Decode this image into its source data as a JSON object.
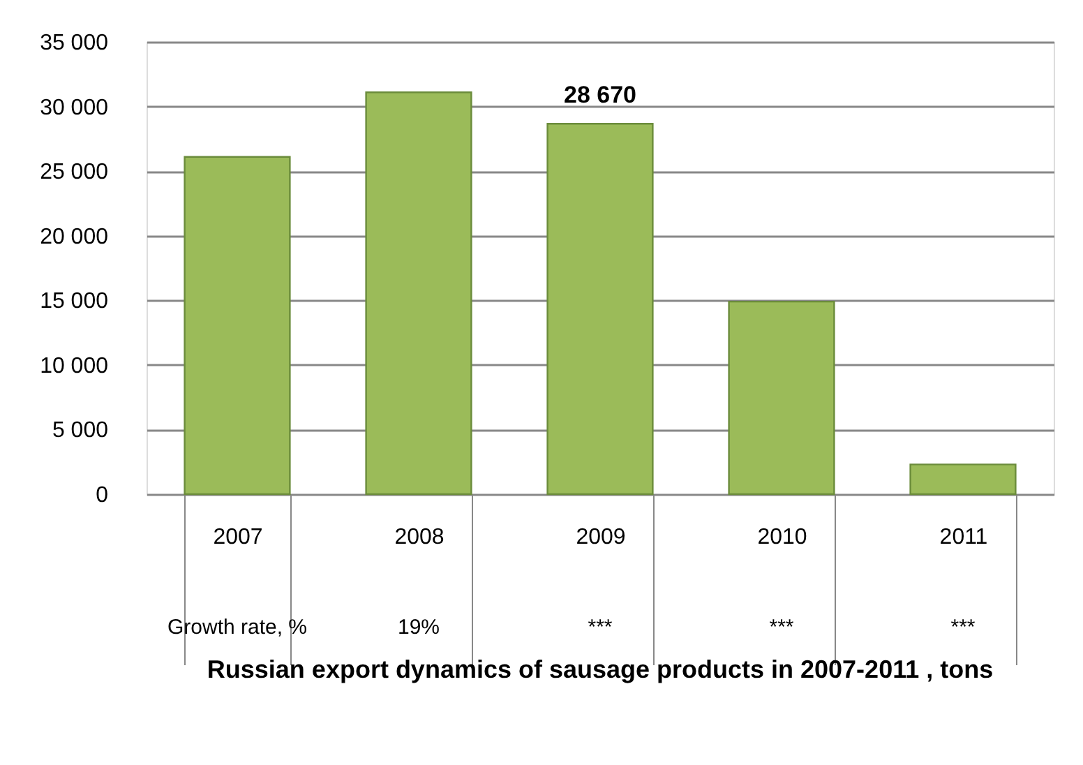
{
  "chart_data": {
    "type": "bar",
    "title": "Russian export dynamics of sausage products in 2007-2011 , tons",
    "categories": [
      "2007",
      "2008",
      "2009",
      "2010",
      "2011"
    ],
    "values": [
      26100,
      31100,
      28670,
      14900,
      2300
    ],
    "value_labels": [
      null,
      null,
      "28 670",
      null,
      null
    ],
    "color": "#9bbb59",
    "ylim": [
      0,
      35000
    ],
    "yticks": [
      {
        "value": 0,
        "label": "0"
      },
      {
        "value": 5000,
        "label": "5 000"
      },
      {
        "value": 10000,
        "label": "10 000"
      },
      {
        "value": 15000,
        "label": "15 000"
      },
      {
        "value": 20000,
        "label": "20 000"
      },
      {
        "value": 25000,
        "label": "25 000"
      },
      {
        "value": 30000,
        "label": "30 000"
      },
      {
        "value": 35000,
        "label": "35 000"
      }
    ],
    "grid": "y",
    "annotations": [
      "Growth rate, %",
      "19%",
      "***",
      "***",
      "***"
    ]
  }
}
